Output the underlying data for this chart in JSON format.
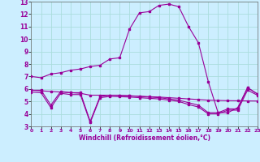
{
  "xlabel": "Windchill (Refroidissement éolien,°C)",
  "x": [
    0,
    1,
    2,
    3,
    4,
    5,
    6,
    7,
    8,
    9,
    10,
    11,
    12,
    13,
    14,
    15,
    16,
    17,
    18,
    19,
    20,
    21,
    22,
    23
  ],
  "line1": [
    7.0,
    6.9,
    7.2,
    7.3,
    7.5,
    7.6,
    7.8,
    7.9,
    8.4,
    8.5,
    10.8,
    12.1,
    12.2,
    12.7,
    12.8,
    12.6,
    11.0,
    9.7,
    6.6,
    4.1,
    4.1,
    4.5,
    6.1,
    5.6
  ],
  "line2": [
    5.9,
    5.85,
    5.8,
    5.75,
    5.7,
    5.65,
    5.5,
    5.5,
    5.5,
    5.48,
    5.45,
    5.42,
    5.38,
    5.35,
    5.3,
    5.25,
    5.2,
    5.15,
    5.1,
    5.08,
    5.06,
    5.05,
    5.04,
    5.03
  ],
  "line3": [
    5.9,
    5.9,
    4.7,
    5.8,
    5.7,
    5.7,
    3.4,
    5.4,
    5.5,
    5.5,
    5.45,
    5.4,
    5.35,
    5.3,
    5.2,
    5.1,
    4.9,
    4.7,
    4.1,
    4.1,
    4.4,
    4.4,
    6.1,
    5.6
  ],
  "line4": [
    5.75,
    5.7,
    4.5,
    5.65,
    5.55,
    5.55,
    3.3,
    5.3,
    5.4,
    5.38,
    5.35,
    5.3,
    5.25,
    5.2,
    5.1,
    5.0,
    4.75,
    4.55,
    4.0,
    4.0,
    4.3,
    4.3,
    5.9,
    5.5
  ],
  "line_color": "#990099",
  "bg_color": "#cceeff",
  "grid_color": "#aadddd",
  "ylim": [
    3,
    13
  ],
  "xlim": [
    0,
    23
  ],
  "yticks": [
    3,
    4,
    5,
    6,
    7,
    8,
    9,
    10,
    11,
    12,
    13
  ],
  "xticks": [
    0,
    1,
    2,
    3,
    4,
    5,
    6,
    7,
    8,
    9,
    10,
    11,
    12,
    13,
    14,
    15,
    16,
    17,
    18,
    19,
    20,
    21,
    22,
    23
  ]
}
